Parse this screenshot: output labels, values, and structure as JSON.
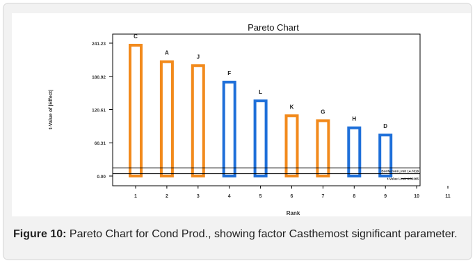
{
  "chart_data": {
    "type": "bar",
    "title": "Pareto Chart",
    "xlabel": "Rank",
    "ylabel": "t-Value of |Effect|",
    "x_ticks": [
      "1",
      "2",
      "3",
      "4",
      "5",
      "6",
      "7",
      "8",
      "9",
      "10",
      "11"
    ],
    "y_ticks": [
      "0.00",
      "60.31",
      "120.61",
      "180.92",
      "241.23"
    ],
    "ylim": [
      0,
      241.23
    ],
    "bars": [
      {
        "rank": 1,
        "label": "C",
        "value": 240,
        "sign": "positive"
      },
      {
        "rank": 2,
        "label": "A",
        "value": 210,
        "sign": "positive"
      },
      {
        "rank": 3,
        "label": "J",
        "value": 203,
        "sign": "positive"
      },
      {
        "rank": 4,
        "label": "F",
        "value": 173,
        "sign": "negative"
      },
      {
        "rank": 5,
        "label": "L",
        "value": 139,
        "sign": "negative"
      },
      {
        "rank": 6,
        "label": "K",
        "value": 112,
        "sign": "positive"
      },
      {
        "rank": 7,
        "label": "G",
        "value": 103,
        "sign": "positive"
      },
      {
        "rank": 8,
        "label": "H",
        "value": 90,
        "sign": "negative"
      },
      {
        "rank": 9,
        "label": "D",
        "value": 77,
        "sign": "negative"
      }
    ],
    "reference_lines": [
      {
        "label": "Bonferroni Limit 14.7818",
        "value": 14.7818
      },
      {
        "label": "t-Value Limit 4.30265",
        "value": 4.30265
      }
    ],
    "colors": {
      "positive": "#f28a1c",
      "negative": "#1e6fd9",
      "axis": "#000000"
    }
  },
  "caption": {
    "label": "Figure 10:",
    "text": " Pareto Chart for Cond Prod., showing factor Casthemost significant parameter."
  }
}
